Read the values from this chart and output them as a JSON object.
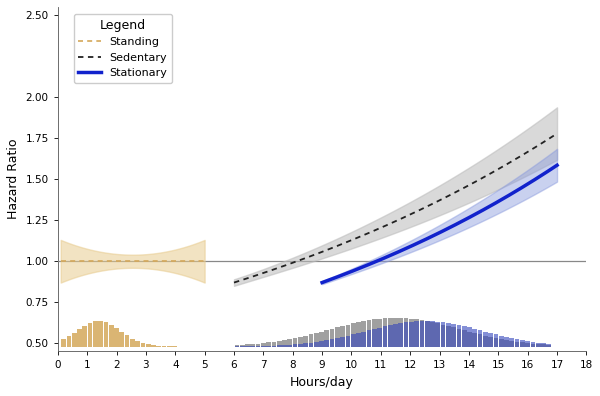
{
  "xlabel": "Hours/day",
  "ylabel": "Hazard Ratio",
  "xlim": [
    0,
    18
  ],
  "ylim": [
    0.45,
    2.55
  ],
  "yticks": [
    0.5,
    0.75,
    1.0,
    1.25,
    1.5,
    1.75,
    2.0,
    2.5
  ],
  "ytick_labels": [
    "0.50",
    "0.75",
    "1.00",
    "1.25",
    "1.50",
    "1.75",
    "2.00",
    "2.50"
  ],
  "xticks": [
    0,
    1,
    2,
    3,
    4,
    5,
    6,
    7,
    8,
    9,
    10,
    11,
    12,
    13,
    14,
    15,
    16,
    17,
    18
  ],
  "standing_color": "#D4A85A",
  "standing_ci_color": "#E8CC90",
  "sedentary_color": "#222222",
  "sedentary_ci_color": "#BBBBBB",
  "stationary_color": "#1122CC",
  "stationary_ci_color": "#8899DD",
  "hist_stand_color": "#D4A85A",
  "hist_sed_color": "#888888",
  "hist_stat_color": "#3344BB",
  "hline_color": "#888888",
  "bg_color": "#FFFFFF",
  "legend_title": "Legend",
  "legend_labels": [
    "Standing",
    "Sedentary",
    "Stationary"
  ]
}
